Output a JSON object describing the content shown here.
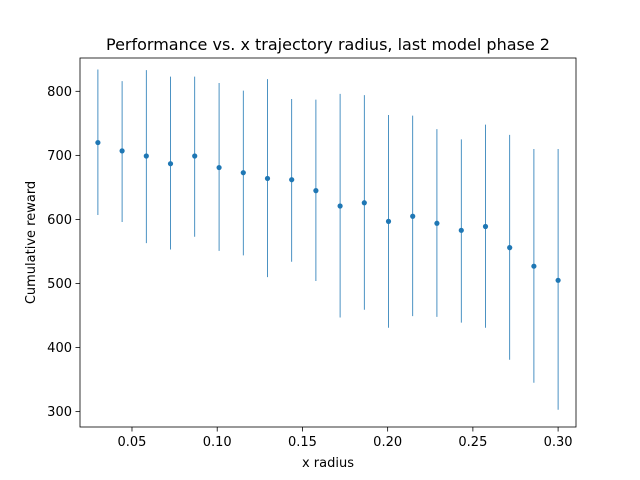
{
  "chart_data": {
    "type": "scatter",
    "title": "Performance vs. x trajectory radius, last model phase 2",
    "xlabel": "x radius",
    "ylabel": "Cumulative reward",
    "xlim": [
      0.0195,
      0.3105
    ],
    "ylim": [
      276,
      852
    ],
    "xticks": [
      0.05,
      0.1,
      0.15,
      0.2,
      0.25,
      0.3
    ],
    "xtick_labels": [
      "0.05",
      "0.10",
      "0.15",
      "0.20",
      "0.25",
      "0.30"
    ],
    "yticks": [
      300,
      400,
      500,
      600,
      700,
      800
    ],
    "ytick_labels": [
      "300",
      "400",
      "500",
      "600",
      "700",
      "800"
    ],
    "grid": false,
    "marker": "point",
    "error_bars": "vertical",
    "series": [
      {
        "color": "#1f77b4",
        "x": [
          0.03,
          0.0442,
          0.0584,
          0.0726,
          0.0868,
          0.1011,
          0.1153,
          0.1295,
          0.1437,
          0.1579,
          0.1721,
          0.1863,
          0.2005,
          0.2147,
          0.2289,
          0.2432,
          0.2574,
          0.2716,
          0.2858,
          0.3
        ],
        "y": [
          720,
          707,
          699,
          687,
          699,
          681,
          673,
          664,
          662,
          645,
          621,
          626,
          597,
          605,
          594,
          583,
          589,
          556,
          527,
          505
        ],
        "y_low": [
          607,
          596,
          563,
          553,
          573,
          551,
          544,
          510,
          534,
          504,
          447,
          459,
          431,
          449,
          448,
          439,
          431,
          381,
          345,
          303
        ],
        "y_high": [
          834,
          816,
          833,
          823,
          823,
          813,
          801,
          819,
          788,
          787,
          796,
          794,
          763,
          762,
          741,
          725,
          748,
          732,
          710,
          710
        ]
      }
    ]
  }
}
